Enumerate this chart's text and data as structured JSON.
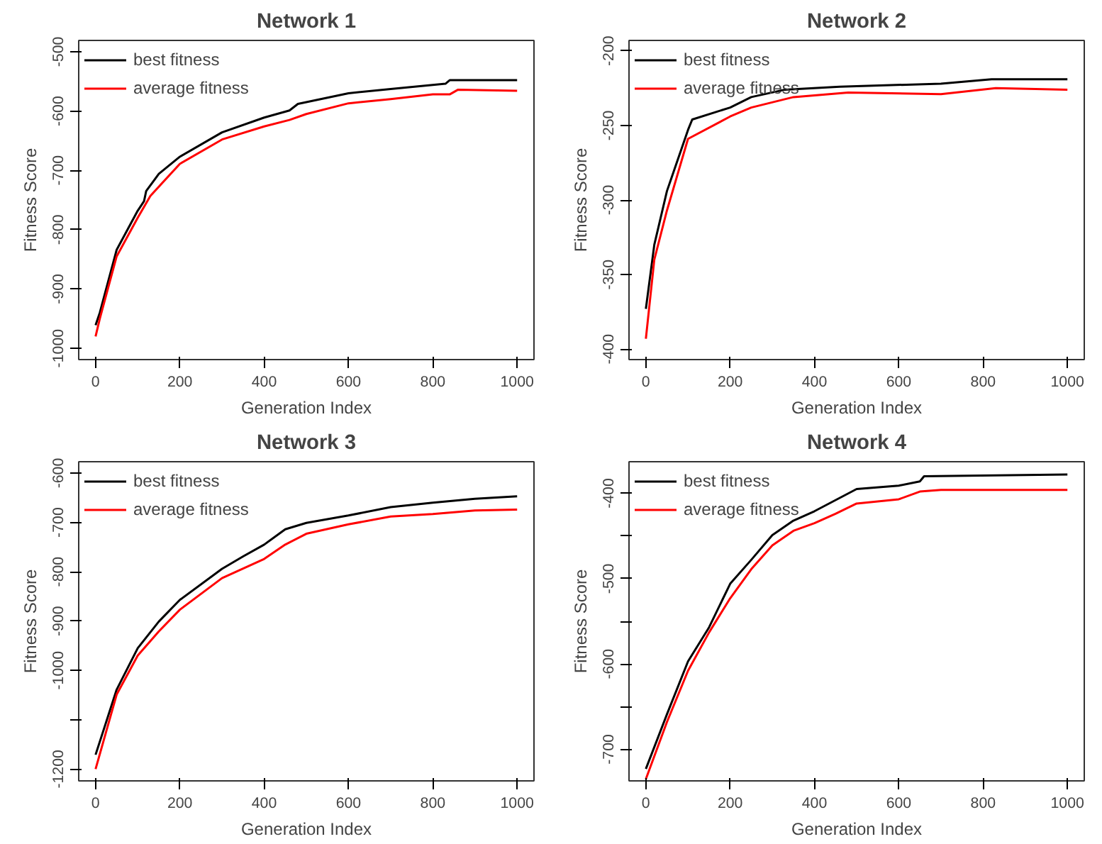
{
  "chart_data": [
    {
      "type": "line",
      "title": "Network 1",
      "xlabel": "Generation Index",
      "ylabel": "Fitness Score",
      "xlim": [
        -40,
        1040
      ],
      "xticks": [
        0,
        200,
        400,
        600,
        800,
        1000
      ],
      "ylim": [
        -1019,
        -481
      ],
      "yticks": [
        -1000,
        -900,
        -800,
        -700,
        -600,
        -500
      ],
      "grid": false,
      "legend": "top left",
      "marker": "none",
      "line_style": "solid",
      "series": [
        {
          "name": "best fitness",
          "color": "#000000",
          "x": [
            0,
            10,
            50,
            100,
            115,
            120,
            150,
            200,
            300,
            400,
            460,
            480,
            600,
            700,
            830,
            840,
            1000
          ],
          "values": [
            -961,
            -940,
            -834,
            -768,
            -752,
            -735,
            -706,
            -677,
            -636,
            -611,
            -599,
            -588,
            -570,
            -563,
            -554,
            -548,
            -548
          ]
        },
        {
          "name": "average fitness",
          "color": "#ff0000",
          "x": [
            0,
            10,
            50,
            100,
            130,
            200,
            300,
            400,
            460,
            500,
            600,
            700,
            800,
            840,
            860,
            1000
          ],
          "values": [
            -980,
            -950,
            -845,
            -780,
            -743,
            -689,
            -648,
            -626,
            -615,
            -605,
            -587,
            -580,
            -572,
            -572,
            -564,
            -566
          ]
        }
      ]
    },
    {
      "type": "line",
      "title": "Network 2",
      "xlabel": "Generation Index",
      "ylabel": "Fitness Score",
      "xlim": [
        -40,
        1040
      ],
      "xticks": [
        0,
        200,
        400,
        600,
        800,
        1000
      ],
      "ylim": [
        -407,
        -193
      ],
      "yticks": [
        -400,
        -350,
        -300,
        -250,
        -200
      ],
      "grid": false,
      "legend": "top left",
      "marker": "none",
      "line_style": "solid",
      "series": [
        {
          "name": "best fitness",
          "color": "#000000",
          "x": [
            0,
            20,
            50,
            100,
            110,
            200,
            250,
            330,
            460,
            700,
            820,
            1000
          ],
          "values": [
            -373,
            -330,
            -294,
            -253,
            -246,
            -238,
            -231,
            -226,
            -224,
            -222,
            -219,
            -219
          ]
        },
        {
          "name": "average fitness",
          "color": "#ff0000",
          "x": [
            0,
            20,
            50,
            100,
            200,
            250,
            350,
            480,
            700,
            830,
            1000
          ],
          "values": [
            -393,
            -340,
            -307,
            -259,
            -244,
            -238,
            -231,
            -228,
            -229,
            -225,
            -226
          ]
        }
      ]
    },
    {
      "type": "line",
      "title": "Network 3",
      "xlabel": "Generation Index",
      "ylabel": "Fitness Score",
      "xlim": [
        -40,
        1040
      ],
      "xticks": [
        0,
        200,
        400,
        600,
        800,
        1000
      ],
      "ylim": [
        -1224,
        -577
      ],
      "yticks": [
        -1200,
        {
          "value": -1100,
          "label": null
        },
        -1000,
        -900,
        -800,
        -700,
        -600
      ],
      "grid": false,
      "legend": "top left",
      "marker": "none",
      "line_style": "solid",
      "series": [
        {
          "name": "best fitness",
          "color": "#000000",
          "x": [
            0,
            50,
            100,
            150,
            200,
            300,
            350,
            400,
            450,
            500,
            600,
            700,
            800,
            900,
            1000
          ],
          "values": [
            -1171,
            -1039,
            -955,
            -901,
            -857,
            -794,
            -769,
            -745,
            -714,
            -701,
            -686,
            -669,
            -660,
            -652,
            -647
          ]
        },
        {
          "name": "average fitness",
          "color": "#ff0000",
          "x": [
            0,
            50,
            100,
            150,
            200,
            300,
            400,
            450,
            500,
            600,
            700,
            800,
            900,
            1000
          ],
          "values": [
            -1200,
            -1049,
            -970,
            -921,
            -877,
            -813,
            -774,
            -745,
            -723,
            -704,
            -688,
            -683,
            -676,
            -674
          ]
        }
      ]
    },
    {
      "type": "line",
      "title": "Network 4",
      "xlabel": "Generation Index",
      "ylabel": "Fitness Score",
      "xlim": [
        -40,
        1040
      ],
      "xticks": [
        0,
        200,
        400,
        600,
        800,
        1000
      ],
      "ylim": [
        -737,
        -363
      ],
      "yticks": [
        -700,
        {
          "value": -650,
          "label": null
        },
        -600,
        {
          "value": -550,
          "label": null
        },
        -500,
        {
          "value": -450,
          "label": null
        },
        -400
      ],
      "grid": false,
      "legend": "top left",
      "marker": "none",
      "line_style": "solid",
      "series": [
        {
          "name": "best fitness",
          "color": "#000000",
          "x": [
            0,
            50,
            100,
            150,
            200,
            250,
            300,
            350,
            400,
            500,
            600,
            650,
            660,
            1000
          ],
          "values": [
            -723,
            -659,
            -597,
            -557,
            -506,
            -478,
            -449,
            -432,
            -421,
            -395,
            -391,
            -386,
            -380,
            -378
          ]
        },
        {
          "name": "average fitness",
          "color": "#ff0000",
          "x": [
            0,
            50,
            100,
            150,
            200,
            250,
            300,
            350,
            400,
            450,
            500,
            600,
            650,
            700,
            1000
          ],
          "values": [
            -735,
            -668,
            -608,
            -563,
            -523,
            -489,
            -461,
            -444,
            -435,
            -424,
            -412,
            -407,
            -398,
            -396,
            -396
          ]
        }
      ]
    }
  ]
}
